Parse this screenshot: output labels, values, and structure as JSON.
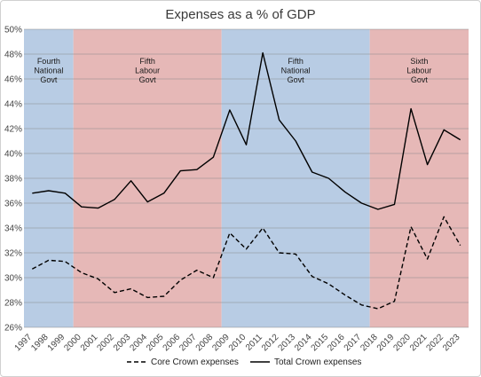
{
  "chart_data": {
    "type": "line",
    "title": "Expenses as a % of GDP",
    "xlabel": "",
    "ylabel": "",
    "x": [
      1997,
      1998,
      1999,
      2000,
      2001,
      2002,
      2003,
      2004,
      2005,
      2006,
      2007,
      2008,
      2009,
      2010,
      2011,
      2012,
      2013,
      2014,
      2015,
      2016,
      2017,
      2018,
      2019,
      2020,
      2021,
      2022,
      2023
    ],
    "ylim": [
      26,
      50
    ],
    "yticks": [
      "26%",
      "28%",
      "30%",
      "32%",
      "34%",
      "36%",
      "38%",
      "40%",
      "42%",
      "44%",
      "46%",
      "48%",
      "50%"
    ],
    "grid": true,
    "series": [
      {
        "name": "Core Crown expenses",
        "style": "dashed",
        "color": "#000000",
        "values": [
          30.7,
          31.4,
          31.3,
          30.4,
          29.9,
          28.8,
          29.1,
          28.4,
          28.5,
          29.8,
          30.6,
          30.0,
          33.6,
          32.3,
          34.0,
          32.0,
          31.9,
          30.1,
          29.5,
          28.6,
          27.8,
          27.5,
          28.1,
          34.1,
          31.5,
          34.9,
          32.6
        ]
      },
      {
        "name": "Total Crown expenses",
        "style": "solid",
        "color": "#000000",
        "values": [
          36.8,
          37.0,
          36.8,
          35.7,
          35.6,
          36.3,
          37.8,
          36.1,
          36.8,
          38.6,
          38.7,
          39.7,
          43.5,
          40.7,
          48.1,
          42.7,
          41.0,
          38.5,
          38.0,
          36.9,
          36.0,
          35.5,
          35.9,
          43.6,
          39.1,
          41.9,
          41.1
        ]
      }
    ],
    "bands": [
      {
        "label": "Fourth National Govt",
        "lines": [
          "Fourth",
          "National",
          "Govt"
        ],
        "from": 1996.5,
        "to": 1999.5,
        "color": "#b8cce4"
      },
      {
        "label": "Fifth Labour Govt",
        "lines": [
          "Fifth",
          "Labour",
          "Govt"
        ],
        "from": 1999.5,
        "to": 2008.5,
        "color": "#e6b8b7"
      },
      {
        "label": "Fifth National Govt",
        "lines": [
          "Fifth",
          "National",
          "Govt"
        ],
        "from": 2008.5,
        "to": 2017.5,
        "color": "#b8cce4"
      },
      {
        "label": "Sixth Labour Govt",
        "lines": [
          "Sixth",
          "Labour",
          "Govt"
        ],
        "from": 2017.5,
        "to": 2023.5,
        "color": "#e6b8b7"
      }
    ],
    "legend_position": "bottom"
  }
}
